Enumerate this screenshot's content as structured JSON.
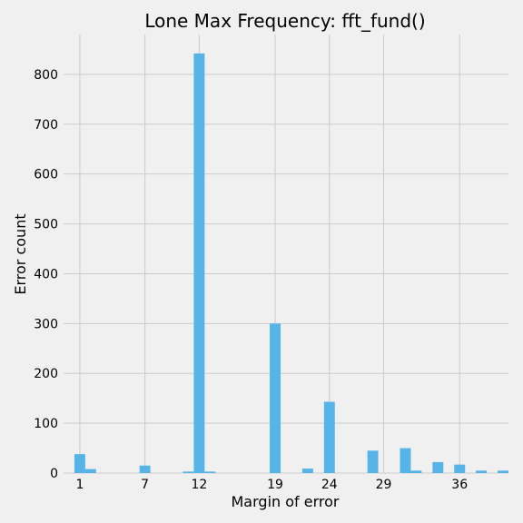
{
  "chart_data": {
    "type": "bar",
    "title": "Lone Max Frequency: fft_fund()",
    "xlabel": "Margin of error",
    "ylabel": "Error count",
    "xlim": [
      -0.5,
      40.5
    ],
    "ylim": [
      0,
      880
    ],
    "x_ticks": [
      1,
      7,
      12,
      19,
      24,
      29,
      36
    ],
    "y_ticks": [
      0,
      100,
      200,
      300,
      400,
      500,
      600,
      700,
      800
    ],
    "grid": true,
    "color": "#56b4e9",
    "bar_width": 1,
    "bars": [
      {
        "x": 1.0,
        "value": 38
      },
      {
        "x": 2.0,
        "value": 8
      },
      {
        "x": 7.0,
        "value": 15
      },
      {
        "x": 11.0,
        "value": 3
      },
      {
        "x": 12.0,
        "value": 842
      },
      {
        "x": 13.0,
        "value": 3
      },
      {
        "x": 19.0,
        "value": 300
      },
      {
        "x": 22.0,
        "value": 9
      },
      {
        "x": 24.0,
        "value": 143
      },
      {
        "x": 28.0,
        "value": 45
      },
      {
        "x": 31.0,
        "value": 50
      },
      {
        "x": 32.0,
        "value": 5
      },
      {
        "x": 34.0,
        "value": 22
      },
      {
        "x": 36.0,
        "value": 17
      },
      {
        "x": 38.0,
        "value": 5
      },
      {
        "x": 40.0,
        "value": 5
      }
    ]
  }
}
